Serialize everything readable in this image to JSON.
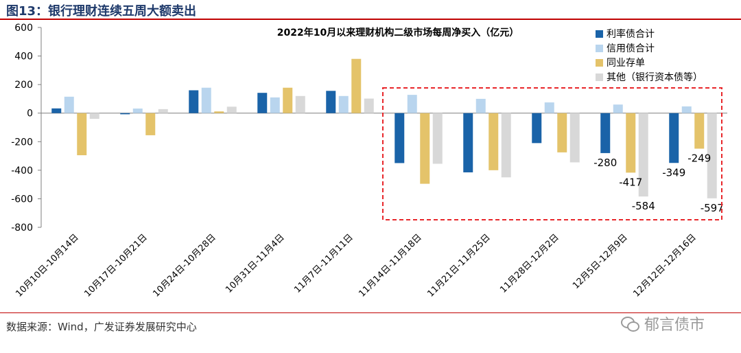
{
  "figure_title": "图13：银行理财连续五周大额卖出",
  "source": "数据来源：Wind，广发证券发展研究中心",
  "watermark": "郁言债市",
  "colors": {
    "series": [
      "#1a63a8",
      "#b9d5ee",
      "#e4c36a",
      "#d8d8d8"
    ],
    "highlight_box": "#e8262a",
    "rule": "#c00000",
    "title": "#1f3a6b"
  },
  "chart_data": {
    "type": "bar",
    "title": "2022年10月以来理财机构二级市场每周净买入（亿元）",
    "ylim": [
      -800,
      600
    ],
    "yticks": [
      600,
      400,
      200,
      0,
      -200,
      -400,
      -600,
      -800
    ],
    "categories": [
      "10月10日-10月14日",
      "10月17日-10月21日",
      "10月24日-10月28日",
      "10月31日-11月4日",
      "11月7日-11月11日",
      "11月14日-11月18日",
      "11月21日-11月25日",
      "11月28日-12月2日",
      "12月5日-12月9日",
      "12月12日-12月16日"
    ],
    "series": [
      {
        "name": "利率债合计",
        "values": [
          33,
          -8,
          160,
          142,
          156,
          -350,
          -415,
          -210,
          -280,
          -349
        ]
      },
      {
        "name": "信用债合计",
        "values": [
          115,
          32,
          178,
          110,
          120,
          128,
          100,
          75,
          60,
          47
        ]
      },
      {
        "name": "同业存单",
        "values": [
          -295,
          -155,
          12,
          178,
          380,
          -495,
          -400,
          -275,
          -417,
          -249
        ]
      },
      {
        "name": "其他（银行资本债等）",
        "values": [
          -40,
          28,
          45,
          120,
          102,
          -355,
          -450,
          -345,
          -584,
          -597
        ]
      }
    ],
    "data_labels": [
      {
        "category": 8,
        "series": 0,
        "text": "-280"
      },
      {
        "category": 8,
        "series": 2,
        "text": "-417"
      },
      {
        "category": 8,
        "series": 3,
        "text": "-584"
      },
      {
        "category": 9,
        "series": 0,
        "text": "-349"
      },
      {
        "category": 9,
        "series": 2,
        "text": "-249"
      },
      {
        "category": 9,
        "series": 3,
        "text": "-597"
      }
    ],
    "highlight_categories": [
      5,
      9
    ],
    "legend_position": "top-right"
  }
}
